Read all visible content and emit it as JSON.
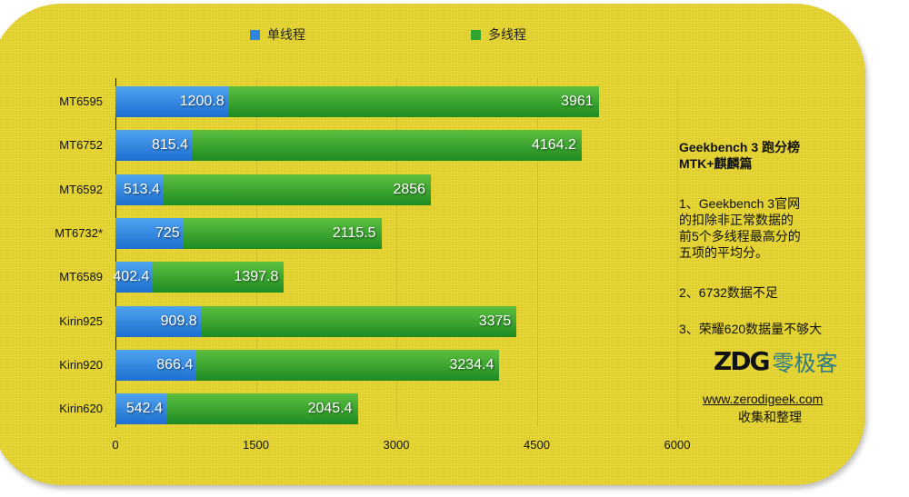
{
  "chart_data": {
    "type": "bar",
    "orientation": "horizontal",
    "stacked": true,
    "title": "Geekbench 3 跑分榜 MTK+麒麟篇",
    "categories": [
      "MT6595",
      "MT6752",
      "MT6592",
      "MT6732*",
      "MT6589",
      "Kirin925",
      "Kirin920",
      "Kirin620"
    ],
    "series": [
      {
        "name": "单线程",
        "color": "#2f86e0",
        "values": [
          1200.8,
          815.4,
          513.4,
          725,
          402.4,
          909.8,
          866.4,
          542.4
        ]
      },
      {
        "name": "多线程",
        "color": "#2fa52f",
        "values": [
          3961,
          4164.2,
          2856,
          2115.5,
          1397.8,
          3375,
          3234.4,
          2045.4
        ]
      }
    ],
    "xlabel": "",
    "ylabel": "",
    "xlim": [
      0,
      6000
    ],
    "xticks": [
      "0",
      "1500",
      "3000",
      "4500",
      "6000"
    ],
    "grid": true,
    "legend_position": "top"
  },
  "legend": {
    "single": "单线程",
    "multi": "多线程"
  },
  "notes": {
    "title1": "Geekbench 3 跑分榜",
    "title2": "MTK+麒麟篇",
    "n1": [
      "1、Geekbench 3官网",
      "的扣除非正常数据的",
      "前5个多线程最高分的",
      "五项的平均分。"
    ],
    "n2": "2、6732数据不足",
    "n3": "3、荣耀620数据量不够大"
  },
  "logo": {
    "mark": "ZDG",
    "name": "零极客"
  },
  "site": "www.zerodigeek.com",
  "credit": "收集和整理"
}
